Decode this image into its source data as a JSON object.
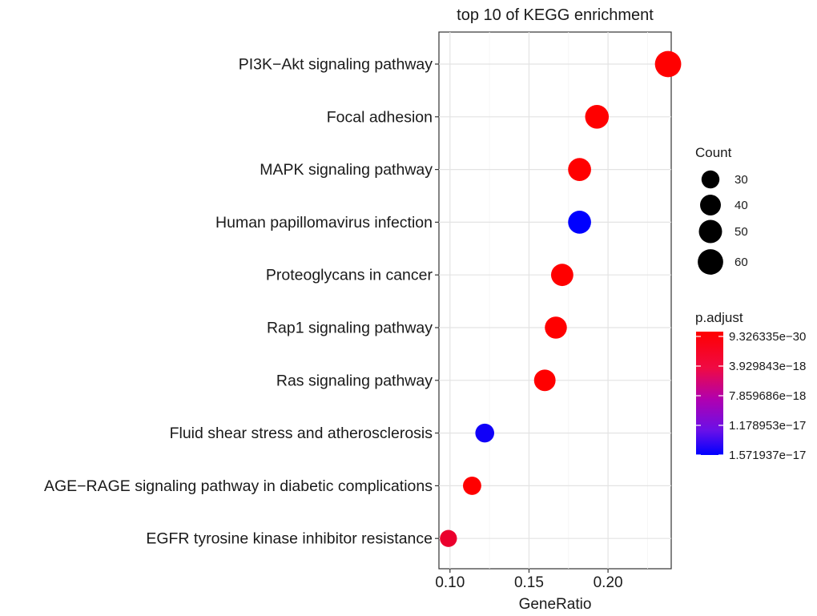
{
  "chart_data": {
    "type": "scatter",
    "title": "top 10 of KEGG enrichment",
    "xlabel": "GeneRatio",
    "ylabel": "",
    "xlim": [
      0.093,
      0.24
    ],
    "xticks": [
      0.1,
      0.15,
      0.2
    ],
    "xtick_labels": [
      "0.10",
      "0.15",
      "0.20"
    ],
    "grid": true,
    "categories": [
      "PI3K−Akt signaling pathway",
      "Focal adhesion",
      "MAPK signaling pathway",
      "Human papillomavirus infection",
      "Proteoglycans in cancer",
      "Rap1 signaling pathway",
      "Ras signaling pathway",
      "Fluid shear stress and atherosclerosis",
      "AGE−RAGE signaling pathway in diabetic complications",
      "EGFR tyrosine kinase inhibitor resistance"
    ],
    "gene_ratio": [
      0.238,
      0.193,
      0.182,
      0.182,
      0.171,
      0.167,
      0.16,
      0.122,
      0.114,
      0.099
    ],
    "count": [
      64,
      52,
      49,
      49,
      46,
      45,
      43,
      33,
      31,
      27
    ],
    "p_adjust": [
      9.3e-30,
      1e-20,
      1e-20,
      1.571937e-17,
      1e-20,
      1e-20,
      1e-20,
      1.5e-17,
      1e-20,
      2e-18
    ],
    "size_legend": {
      "title": "Count",
      "values": [
        30,
        40,
        50,
        60
      ],
      "labels": [
        "30",
        "40",
        "50",
        "60"
      ]
    },
    "color_legend": {
      "title": "p.adjust",
      "min": 9.326335e-30,
      "max": 1.571937e-17,
      "labels": [
        "9.326335e−30",
        "3.929843e−18",
        "7.859686e−18",
        "1.178953e−17",
        "1.571937e−17"
      ],
      "low_color": "#ff0000",
      "high_color": "#0000ff"
    },
    "legend_position": "right"
  }
}
